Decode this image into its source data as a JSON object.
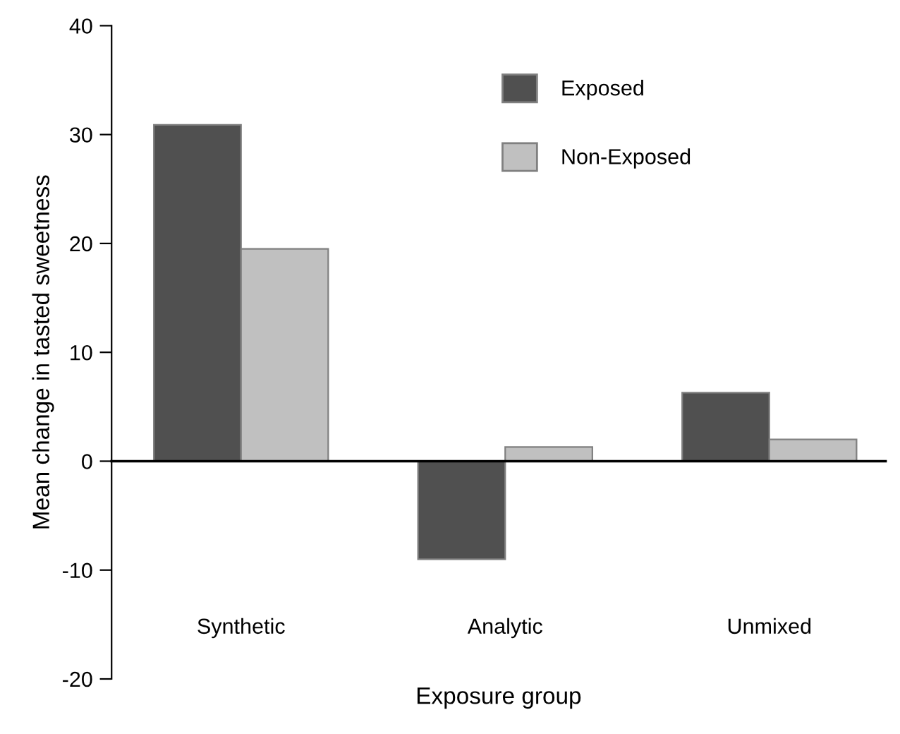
{
  "chart_data": {
    "type": "bar",
    "xlabel": "Exposure group",
    "ylabel": "Mean change in tasted sweetness",
    "categories": [
      "Synthetic",
      "Analytic",
      "Unmixed"
    ],
    "series": [
      {
        "name": "Exposed",
        "color": "#505050",
        "values": [
          30.9,
          -9.0,
          6.3
        ]
      },
      {
        "name": "Non-Exposed",
        "color": "#c0c0c0",
        "values": [
          19.5,
          1.3,
          2.0
        ]
      }
    ],
    "ylim": [
      -20,
      40
    ],
    "yticks": [
      -20,
      -10,
      0,
      10,
      20,
      30,
      40
    ],
    "legend": "top right"
  }
}
